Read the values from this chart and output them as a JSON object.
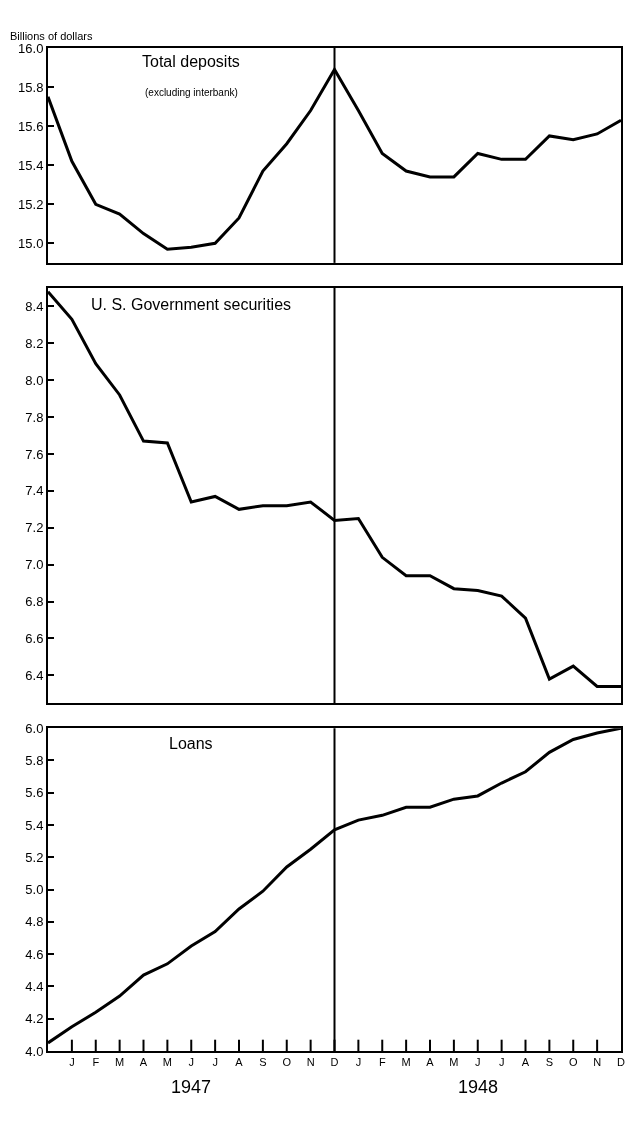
{
  "chart_data": [
    {
      "type": "line",
      "title": "Total deposits",
      "subtitle": "(excluding interbank)",
      "ylabel": "Billions of dollars",
      "color": "#000000",
      "marker": "none",
      "line_style": "solid",
      "tick_labels": "y",
      "values": [
        15.75,
        15.42,
        15.2,
        15.15,
        15.05,
        14.97,
        14.98,
        15.0,
        15.13,
        15.37,
        15.51,
        15.68,
        15.89,
        15.68,
        15.46,
        15.37,
        15.34,
        15.34,
        15.46,
        15.43,
        15.43,
        15.55,
        15.53,
        15.56,
        15.63
      ],
      "ylim": [
        14.9,
        16.0
      ],
      "yticks": [
        {
          "value": 15.0,
          "label": "15.0"
        },
        {
          "value": 15.2,
          "label": "15.2"
        },
        {
          "value": 15.4,
          "label": "15.4"
        },
        {
          "value": 15.6,
          "label": "15.6"
        },
        {
          "value": 15.8,
          "label": "15.8"
        },
        {
          "value": 16.0,
          "label": "16.0"
        }
      ]
    },
    {
      "type": "line",
      "title": "U. S. Government securities",
      "color": "#000000",
      "marker": "none",
      "line_style": "solid",
      "tick_labels": "y",
      "values": [
        8.48,
        8.33,
        8.09,
        7.92,
        7.67,
        7.66,
        7.34,
        7.37,
        7.3,
        7.32,
        7.32,
        7.34,
        7.24,
        7.25,
        7.04,
        6.94,
        6.94,
        6.87,
        6.86,
        6.83,
        6.71,
        6.38,
        6.45,
        6.34,
        6.34
      ],
      "ylim": [
        6.25,
        8.5
      ],
      "yticks": [
        {
          "value": 6.4,
          "label": "6.4"
        },
        {
          "value": 6.6,
          "label": "6.6"
        },
        {
          "value": 6.8,
          "label": "6.8"
        },
        {
          "value": 7.0,
          "label": "7.0"
        },
        {
          "value": 7.2,
          "label": "7.2"
        },
        {
          "value": 7.4,
          "label": "7.4"
        },
        {
          "value": 7.6,
          "label": "7.6"
        },
        {
          "value": 7.8,
          "label": "7.8"
        },
        {
          "value": 8.0,
          "label": "8.0"
        },
        {
          "value": 8.2,
          "label": "8.2"
        },
        {
          "value": 8.4,
          "label": "8.4"
        }
      ]
    },
    {
      "type": "line",
      "title": "Loans",
      "color": "#000000",
      "marker": "none",
      "line_style": "solid",
      "categories": [
        null,
        "J",
        "F",
        "M",
        "A",
        "M",
        "J",
        "J",
        "A",
        "S",
        "O",
        "N",
        "D",
        "J",
        "F",
        "M",
        "A",
        "M",
        "J",
        "J",
        "A",
        "S",
        "O",
        "N",
        "D"
      ],
      "values": [
        4.05,
        4.15,
        4.24,
        4.34,
        4.47,
        4.54,
        4.65,
        4.74,
        4.88,
        4.99,
        5.14,
        5.25,
        5.37,
        5.43,
        5.46,
        5.51,
        5.51,
        5.56,
        5.58,
        5.66,
        5.73,
        5.85,
        5.93,
        5.97,
        6.0
      ],
      "ylim": [
        4.0,
        6.0
      ],
      "yticks": [
        {
          "value": 4.0,
          "label": "4.0"
        },
        {
          "value": 4.2,
          "label": "4.2"
        },
        {
          "value": 4.4,
          "label": "4.4"
        },
        {
          "value": 4.6,
          "label": "4.6"
        },
        {
          "value": 4.8,
          "label": "4.8"
        },
        {
          "value": 5.0,
          "label": "5.0"
        },
        {
          "value": 5.2,
          "label": "5.2"
        },
        {
          "value": 5.4,
          "label": "5.4"
        },
        {
          "value": 5.6,
          "label": "5.6"
        },
        {
          "value": 5.8,
          "label": "5.8"
        },
        {
          "value": 6.0,
          "label": "6.0"
        }
      ],
      "annotations": [
        "1947",
        "1948"
      ]
    }
  ]
}
